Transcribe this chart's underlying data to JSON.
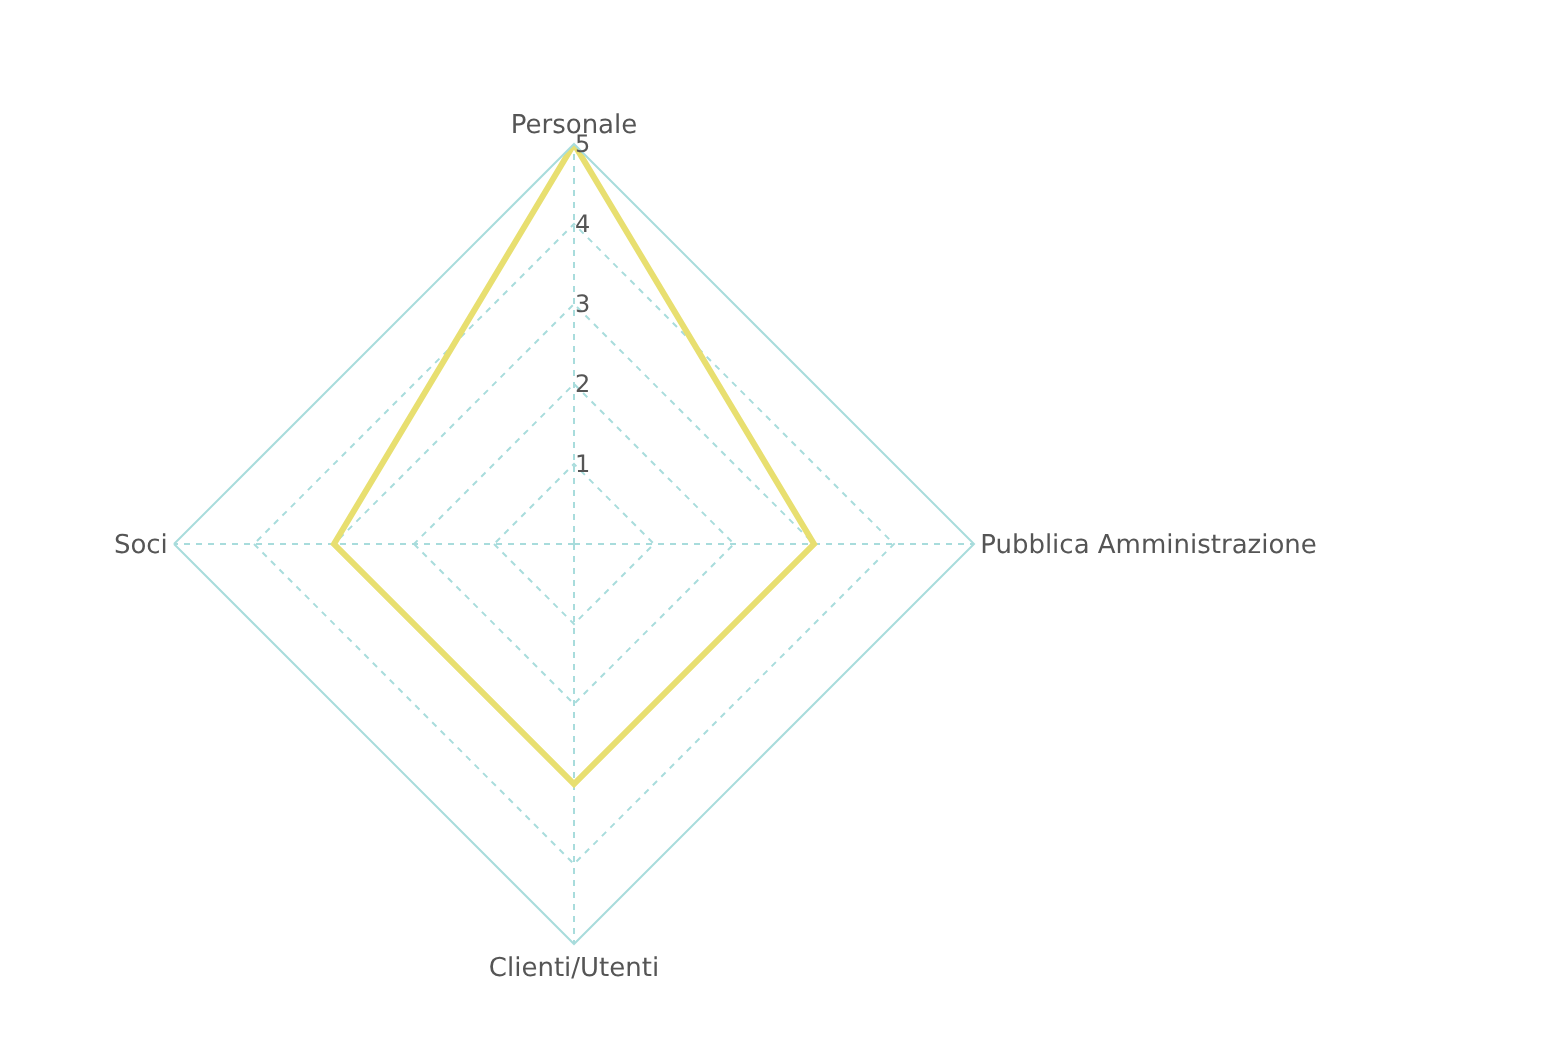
{
  "chart_data": {
    "type": "radar",
    "categories": [
      "Personale",
      "Pubblica Amministrazione",
      "Clienti/Utenti",
      "Soci"
    ],
    "series": [
      {
        "color": "#e8df70",
        "values": [
          5,
          3,
          3,
          3
        ]
      }
    ],
    "ylim": [
      0,
      5
    ],
    "yticks": [
      1,
      2,
      3,
      4,
      5
    ],
    "grid": true,
    "marker": "none",
    "line_style": "solid"
  }
}
